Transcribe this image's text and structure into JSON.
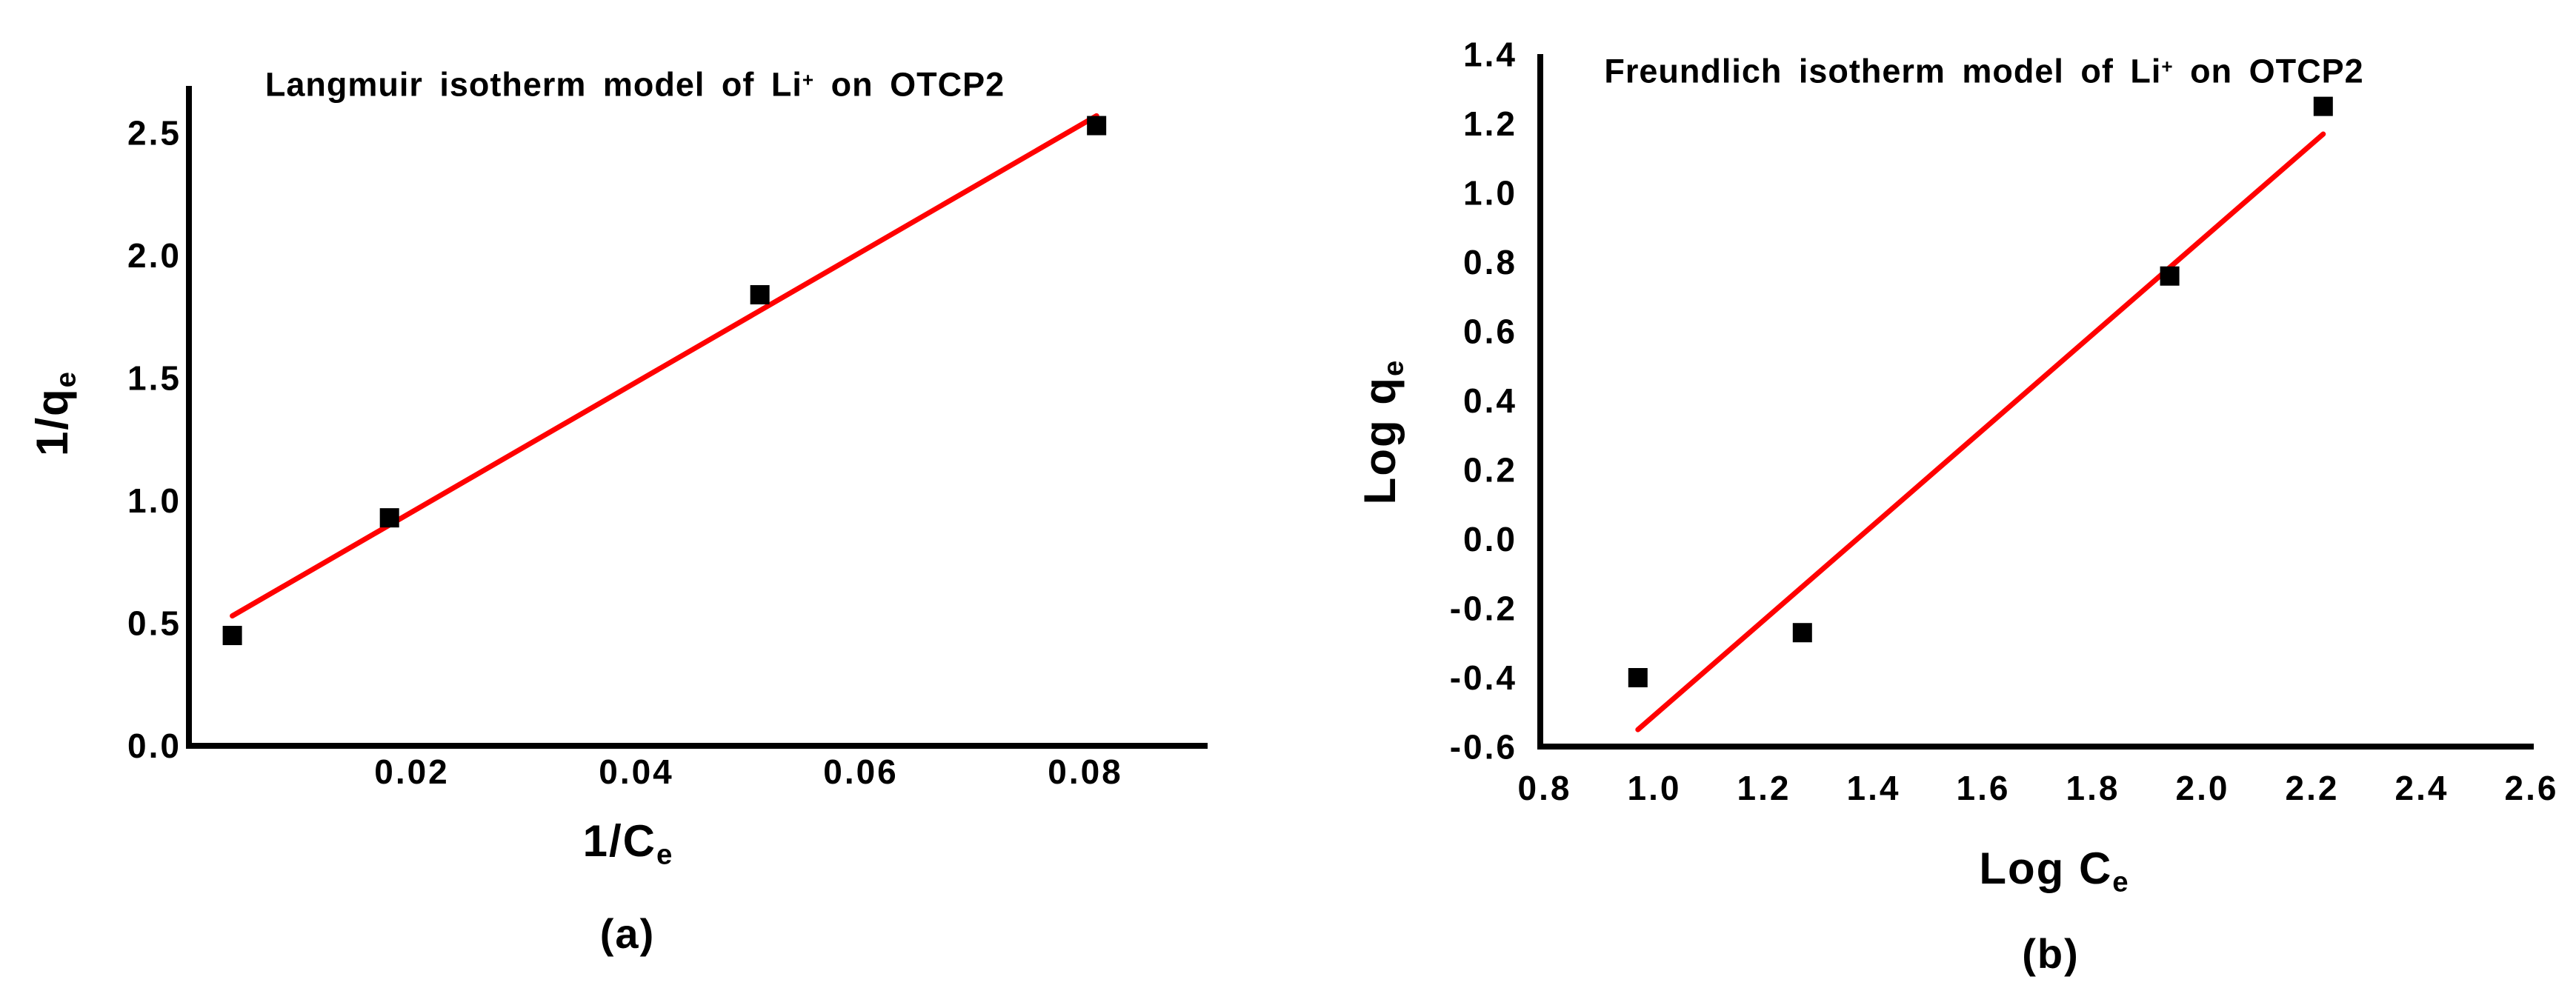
{
  "page": {
    "background": "#ffffff"
  },
  "colors": {
    "axis": "#000000",
    "text": "#000000",
    "marker": "#000000",
    "fit_line": "#ff0000"
  },
  "chart_data": [
    {
      "id": "langmuir",
      "type": "scatter",
      "title": "Langmuir isotherm model of Li+ on OTCP2",
      "title_parts": {
        "pre": "Langmuir isotherm model of Li",
        "sup": "+",
        "post": " on OTCP2"
      },
      "xlabel": "1/Ce",
      "xlabel_parts": {
        "main": "1/C",
        "sub": "e"
      },
      "ylabel": "1/qe",
      "ylabel_parts": {
        "main": "1/q",
        "sub": "e"
      },
      "caption": "(a)",
      "xlim": [
        0,
        0.091
      ],
      "ylim": [
        0,
        2.69
      ],
      "xticks": [
        0.02,
        0.04,
        0.06,
        0.08
      ],
      "xtick_labels": [
        "0.02",
        "0.04",
        "0.06",
        "0.08"
      ],
      "yticks": [
        0.0,
        0.5,
        1.0,
        1.5,
        2.0,
        2.5
      ],
      "ytick_labels": [
        "0.0",
        "0.5",
        "1.0",
        "1.5",
        "2.0",
        "2.5"
      ],
      "points": [
        [
          0.004,
          0.45
        ],
        [
          0.018,
          0.93
        ],
        [
          0.051,
          1.84
        ],
        [
          0.081,
          2.53
        ]
      ],
      "fit_line": {
        "x1": 0.004,
        "y1": 0.53,
        "x2": 0.081,
        "y2": 2.57
      },
      "marker": "square",
      "grid": false,
      "legend": null
    },
    {
      "id": "freundlich",
      "type": "scatter",
      "title": "Freundlich isotherm model of Li+ on OTCP2",
      "title_parts": {
        "pre": "Freundlich isotherm model of Li",
        "sup": "+",
        "post": " on OTCP2"
      },
      "xlabel": "Log Ce",
      "xlabel_parts": {
        "main": "Log C",
        "sub": "e"
      },
      "ylabel": "Log qe",
      "ylabel_parts": {
        "main": "Log q",
        "sub": "e"
      },
      "caption": "(b)",
      "xlim": [
        0.789,
        2.6
      ],
      "ylim": [
        -0.6,
        1.4
      ],
      "xticks": [
        0.8,
        1.0,
        1.2,
        1.4,
        1.6,
        1.8,
        2.0,
        2.2,
        2.4,
        2.6
      ],
      "xtick_labels": [
        "0.8",
        "1.0",
        "1.2",
        "1.4",
        "1.6",
        "1.8",
        "2.0",
        "2.2",
        "2.4",
        "2.6"
      ],
      "yticks": [
        1.4,
        1.2,
        1.0,
        0.8,
        0.6,
        0.4,
        0.2,
        0.0,
        -0.2,
        -0.4,
        -0.6
      ],
      "ytick_labels": [
        "1.4",
        "1.2",
        "1.0",
        "0.8",
        "0.6",
        "0.4",
        "0.2",
        "0.0",
        "-0.2",
        "-0.4",
        "-0.6"
      ],
      "points": [
        [
          0.97,
          -0.4
        ],
        [
          1.27,
          -0.27
        ],
        [
          1.94,
          0.76
        ],
        [
          2.22,
          1.25
        ]
      ],
      "fit_line": {
        "x1": 0.97,
        "y1": -0.55,
        "x2": 2.22,
        "y2": 1.17
      },
      "marker": "square",
      "grid": false,
      "legend": null
    }
  ]
}
